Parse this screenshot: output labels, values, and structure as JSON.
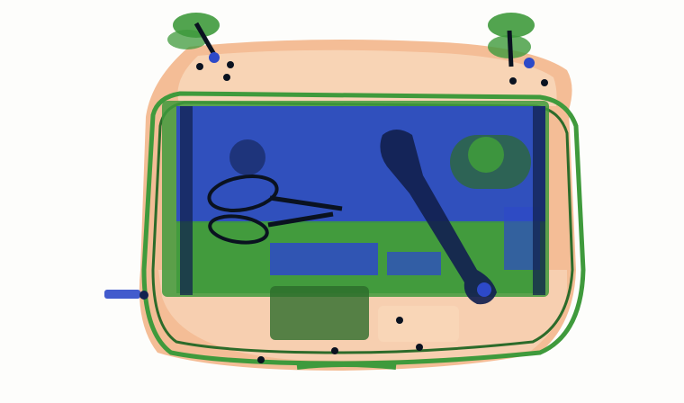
{
  "image": {
    "kind": "x-ray baggage scan",
    "colors": {
      "background": "#fdfdfb",
      "organic_orange": "#f2b184",
      "organic_light": "#f8d6b8",
      "inorganic_green": "#3f9a3c",
      "green_dark": "#2c6b2a",
      "metal_blue": "#2d49c8",
      "metal_dark": "#12214f",
      "dense_black": "#0a1220"
    },
    "objects": [
      {
        "id": "suitcase-shell",
        "material": "organic"
      },
      {
        "id": "laptop",
        "material": "metal"
      },
      {
        "id": "adjustable-wrench",
        "material": "metal"
      },
      {
        "id": "scissors",
        "material": "metal"
      },
      {
        "id": "wheel-left",
        "material": "inorganic"
      },
      {
        "id": "wheel-right",
        "material": "inorganic"
      },
      {
        "id": "handle",
        "material": "inorganic"
      },
      {
        "id": "side-tag",
        "material": "metal"
      }
    ]
  }
}
